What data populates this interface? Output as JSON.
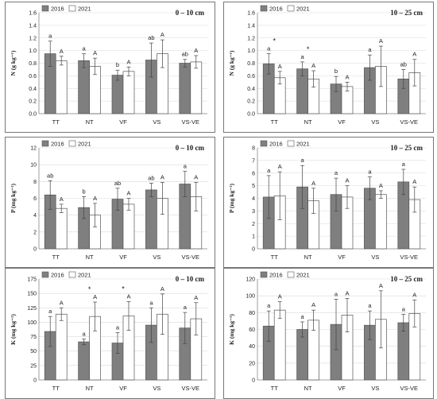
{
  "colors": {
    "series_2016": "#7f7f7f",
    "series_2021": "#ffffff",
    "bar_stroke": "#555555",
    "panel_border": "#777777"
  },
  "chart_data": [
    {
      "type": "bar",
      "title": "0 – 10 cm",
      "ylabel": "N (g kg⁻¹)",
      "categories": [
        "TT",
        "NT",
        "VF",
        "VS",
        "VS-VE"
      ],
      "ylim": [
        0,
        1.6
      ],
      "yticks": [
        0,
        0.2,
        0.4,
        0.6,
        0.8,
        1.0,
        1.2,
        1.4,
        1.6
      ],
      "tick_decimals": 1,
      "grid": "horizontal",
      "legend_position": "top-left",
      "series": [
        {
          "name": "2016",
          "values": [
            0.95,
            0.84,
            0.61,
            0.85,
            0.8
          ],
          "errors": [
            0.2,
            0.11,
            0.08,
            0.27,
            0.06
          ],
          "letters": [
            "a",
            "a",
            "b",
            "ab",
            "ab"
          ]
        },
        {
          "name": "2021",
          "values": [
            0.84,
            0.75,
            0.67,
            0.95,
            0.82
          ],
          "errors": [
            0.07,
            0.13,
            0.07,
            0.22,
            0.1
          ],
          "letters": [
            "A",
            "A",
            "A",
            "A",
            "A"
          ]
        }
      ],
      "stars": [
        "",
        "",
        "",
        "",
        ""
      ]
    },
    {
      "type": "bar",
      "title": "10 – 25 cm",
      "ylabel": "N (g kg⁻¹)",
      "categories": [
        "TT",
        "NT",
        "VF",
        "VS",
        "VS-VE"
      ],
      "ylim": [
        0,
        1.6
      ],
      "yticks": [
        0,
        0.2,
        0.4,
        0.6,
        0.8,
        1.0,
        1.2,
        1.4,
        1.6
      ],
      "tick_decimals": 1,
      "grid": "horizontal",
      "legend_position": "top-left",
      "series": [
        {
          "name": "2016",
          "values": [
            0.79,
            0.71,
            0.47,
            0.73,
            0.55
          ],
          "errors": [
            0.16,
            0.11,
            0.12,
            0.2,
            0.15
          ],
          "letters": [
            "a",
            "a",
            "b",
            "a",
            "ab"
          ]
        },
        {
          "name": "2021",
          "values": [
            0.57,
            0.55,
            0.43,
            0.75,
            0.65
          ],
          "errors": [
            0.1,
            0.13,
            0.07,
            0.32,
            0.21
          ],
          "letters": [
            "A",
            "A",
            "A",
            "A",
            "A"
          ]
        }
      ],
      "stars": [
        "*",
        "*",
        "",
        "",
        ""
      ]
    },
    {
      "type": "bar",
      "title": "0 – 10 cm",
      "ylabel": "P (mg kg⁻¹)",
      "categories": [
        "TT",
        "NT",
        "VF",
        "VS",
        "VS-VE"
      ],
      "ylim": [
        0,
        12
      ],
      "yticks": [
        0,
        2,
        4,
        6,
        8,
        10,
        12
      ],
      "tick_decimals": 0,
      "grid": "horizontal",
      "legend_position": "top-left",
      "series": [
        {
          "name": "2016",
          "values": [
            6.4,
            4.9,
            5.9,
            7.0,
            7.7
          ],
          "errors": [
            1.7,
            1.3,
            1.3,
            0.8,
            1.5
          ],
          "letters": [
            "ab",
            "b",
            "ab",
            "ab",
            "a"
          ]
        },
        {
          "name": "2021",
          "values": [
            4.8,
            4.0,
            5.3,
            6.0,
            6.2
          ],
          "errors": [
            0.5,
            1.4,
            0.7,
            1.9,
            1.7
          ],
          "letters": [
            "A",
            "A",
            "A",
            "A",
            "A"
          ]
        }
      ],
      "stars": [
        "",
        "",
        "",
        "",
        ""
      ]
    },
    {
      "type": "bar",
      "title": "10 – 25 cm",
      "ylabel": "P (mg kg⁻¹)",
      "categories": [
        "TT",
        "NT",
        "VF",
        "VS",
        "VS-VE"
      ],
      "ylim": [
        0,
        8
      ],
      "yticks": [
        0,
        1,
        2,
        3,
        4,
        5,
        6,
        7,
        8
      ],
      "tick_decimals": 0,
      "grid": "horizontal",
      "legend_position": "top-left",
      "series": [
        {
          "name": "2016",
          "values": [
            4.1,
            4.9,
            4.3,
            4.8,
            5.3
          ],
          "errors": [
            1.7,
            1.7,
            1.3,
            0.9,
            1.0
          ],
          "letters": [
            "a",
            "a",
            "a",
            "a",
            "a"
          ]
        },
        {
          "name": "2021",
          "values": [
            4.2,
            3.8,
            4.1,
            4.3,
            3.9
          ],
          "errors": [
            1.9,
            1.0,
            0.9,
            0.3,
            1.0
          ],
          "letters": [
            "A",
            "A",
            "A",
            "A",
            "A"
          ]
        }
      ],
      "stars": [
        "",
        "",
        "",
        "",
        ""
      ]
    },
    {
      "type": "bar",
      "title": "0 – 10 cm",
      "ylabel": "K (mg kg⁻¹)",
      "categories": [
        "TT",
        "NT",
        "VF",
        "VS",
        "VS-VE"
      ],
      "ylim": [
        0,
        175
      ],
      "yticks": [
        0,
        25,
        50,
        75,
        100,
        125,
        150,
        175
      ],
      "tick_decimals": 0,
      "grid": "horizontal",
      "legend_position": "top-left",
      "series": [
        {
          "name": "2016",
          "values": [
            84,
            66,
            64,
            95,
            90
          ],
          "errors": [
            26,
            5,
            18,
            30,
            27
          ],
          "letters": [
            "a",
            "a",
            "a",
            "a",
            "a"
          ]
        },
        {
          "name": "2021",
          "values": [
            114,
            110,
            111,
            114,
            106
          ],
          "errors": [
            11,
            25,
            25,
            35,
            28
          ],
          "letters": [
            "A",
            "A",
            "A",
            "A",
            "A"
          ]
        }
      ],
      "stars": [
        "",
        "*",
        "*",
        "",
        ""
      ]
    },
    {
      "type": "bar",
      "title": "10 – 25 cm",
      "ylabel": "K (mg kg⁻¹)",
      "categories": [
        "TT",
        "NT",
        "VF",
        "VS",
        "VS-VE"
      ],
      "ylim": [
        0,
        120
      ],
      "yticks": [
        0,
        20,
        40,
        60,
        80,
        100,
        120
      ],
      "tick_decimals": 0,
      "grid": "horizontal",
      "legend_position": "top-left",
      "series": [
        {
          "name": "2016",
          "values": [
            64,
            60,
            66,
            65,
            68
          ],
          "errors": [
            18,
            9,
            30,
            17,
            10
          ],
          "letters": [
            "a",
            "a",
            "a",
            "a",
            "a"
          ]
        },
        {
          "name": "2021",
          "values": [
            83,
            71,
            77,
            72,
            79
          ],
          "errors": [
            10,
            12,
            20,
            34,
            16
          ],
          "letters": [
            "A",
            "A",
            "A",
            "A",
            "A"
          ]
        }
      ],
      "stars": [
        "",
        "",
        "",
        "",
        ""
      ]
    }
  ]
}
